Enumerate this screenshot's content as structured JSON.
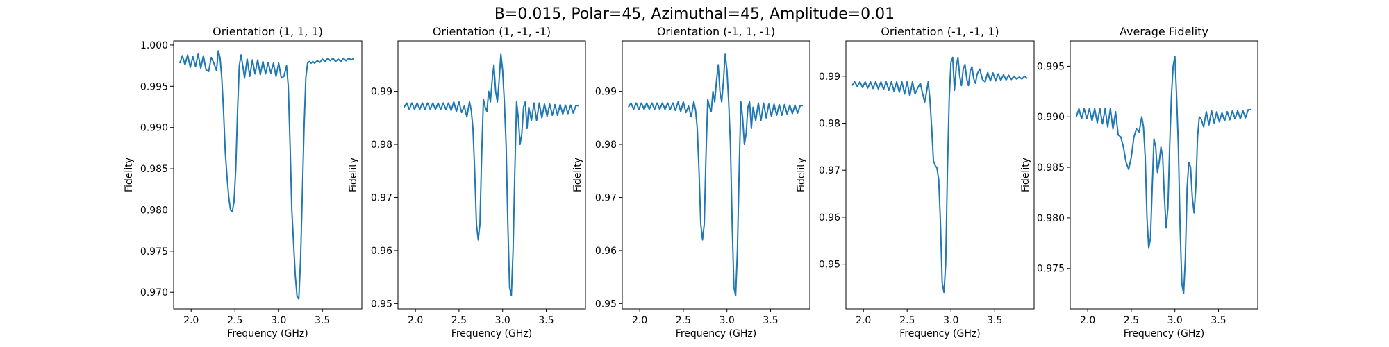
{
  "figure": {
    "suptitle": "B=0.015, Polar=45, Azimuthal=45, Amplitude=0.01",
    "line_color": "#1f77b4"
  },
  "chart_data": [
    {
      "type": "line",
      "title": "Orientation (1, 1, 1)",
      "xlabel": "Frequency (GHz)",
      "ylabel": "Fidelity",
      "xlim": [
        1.8,
        3.95
      ],
      "ylim": [
        0.968,
        1.0005
      ],
      "xticks": [
        2.0,
        2.5,
        3.0,
        3.5
      ],
      "xtick_labels": [
        "2.0",
        "2.5",
        "3.0",
        "3.5"
      ],
      "yticks": [
        0.97,
        0.975,
        0.98,
        0.985,
        0.99,
        0.995,
        1.0
      ],
      "ytick_labels": [
        "0.970",
        "0.975",
        "0.980",
        "0.985",
        "0.990",
        "0.995",
        "1.000"
      ],
      "grid": false,
      "series": [
        {
          "x": [
            1.87,
            1.9,
            1.93,
            1.96,
            1.99,
            2.02,
            2.05,
            2.08,
            2.11,
            2.14,
            2.17,
            2.2,
            2.23,
            2.26,
            2.29,
            2.31,
            2.33,
            2.35,
            2.37,
            2.39,
            2.41,
            2.43,
            2.45,
            2.47,
            2.49,
            2.51,
            2.53,
            2.55,
            2.57,
            2.59,
            2.61,
            2.64,
            2.67,
            2.7,
            2.73,
            2.76,
            2.79,
            2.82,
            2.85,
            2.88,
            2.91,
            2.94,
            2.97,
            3.0,
            3.03,
            3.06,
            3.09,
            3.11,
            3.13,
            3.15,
            3.17,
            3.19,
            3.21,
            3.23,
            3.25,
            3.27,
            3.29,
            3.31,
            3.33,
            3.35,
            3.37,
            3.39,
            3.41,
            3.44,
            3.47,
            3.5,
            3.53,
            3.56,
            3.59,
            3.62,
            3.65,
            3.68,
            3.71,
            3.74,
            3.77,
            3.8,
            3.83,
            3.86
          ],
          "y": [
            0.9978,
            0.9987,
            0.9976,
            0.9988,
            0.9973,
            0.9986,
            0.9974,
            0.9989,
            0.9972,
            0.9987,
            0.997,
            0.9968,
            0.9985,
            0.9978,
            0.9969,
            0.9993,
            0.9985,
            0.996,
            0.992,
            0.987,
            0.984,
            0.9815,
            0.98,
            0.9798,
            0.981,
            0.985,
            0.992,
            0.9975,
            0.9988,
            0.9975,
            0.996,
            0.9983,
            0.9962,
            0.9982,
            0.9965,
            0.9982,
            0.9964,
            0.998,
            0.9965,
            0.9979,
            0.9966,
            0.9978,
            0.9962,
            0.9978,
            0.996,
            0.9962,
            0.9975,
            0.995,
            0.988,
            0.98,
            0.976,
            0.972,
            0.9695,
            0.9692,
            0.974,
            0.982,
            0.99,
            0.996,
            0.9978,
            0.998,
            0.9978,
            0.998,
            0.9978,
            0.9981,
            0.9979,
            0.9983,
            0.998,
            0.9984,
            0.9981,
            0.9984,
            0.998,
            0.9983,
            0.998,
            0.9984,
            0.9981,
            0.9984,
            0.9982,
            0.9984
          ]
        }
      ]
    },
    {
      "type": "line",
      "title": "Orientation (1, -1, -1)",
      "xlabel": "Frequency (GHz)",
      "ylabel": "Fidelity",
      "xlim": [
        1.8,
        3.95
      ],
      "ylim": [
        0.949,
        0.9995
      ],
      "xticks": [
        2.0,
        2.5,
        3.0,
        3.5
      ],
      "xtick_labels": [
        "2.0",
        "2.5",
        "3.0",
        "3.5"
      ],
      "yticks": [
        0.95,
        0.96,
        0.97,
        0.98,
        0.99
      ],
      "ytick_labels": [
        "0.95",
        "0.96",
        "0.97",
        "0.98",
        "0.99"
      ],
      "grid": false,
      "series": [
        {
          "x": [
            1.87,
            1.9,
            1.93,
            1.96,
            1.99,
            2.02,
            2.05,
            2.08,
            2.11,
            2.14,
            2.17,
            2.2,
            2.23,
            2.26,
            2.29,
            2.32,
            2.35,
            2.38,
            2.41,
            2.44,
            2.47,
            2.5,
            2.53,
            2.56,
            2.59,
            2.62,
            2.64,
            2.66,
            2.68,
            2.7,
            2.72,
            2.74,
            2.76,
            2.78,
            2.8,
            2.82,
            2.84,
            2.86,
            2.88,
            2.9,
            2.92,
            2.94,
            2.96,
            2.98,
            3.0,
            3.02,
            3.04,
            3.06,
            3.08,
            3.1,
            3.12,
            3.14,
            3.16,
            3.18,
            3.2,
            3.22,
            3.24,
            3.26,
            3.28,
            3.3,
            3.33,
            3.36,
            3.39,
            3.42,
            3.45,
            3.48,
            3.51,
            3.54,
            3.57,
            3.6,
            3.63,
            3.66,
            3.69,
            3.72,
            3.75,
            3.78,
            3.81,
            3.84,
            3.87
          ],
          "y": [
            0.987,
            0.9878,
            0.9866,
            0.9878,
            0.9866,
            0.9878,
            0.9866,
            0.9878,
            0.9866,
            0.9878,
            0.9866,
            0.9878,
            0.9866,
            0.9878,
            0.9866,
            0.9878,
            0.9866,
            0.9878,
            0.9864,
            0.988,
            0.9862,
            0.988,
            0.986,
            0.9872,
            0.9852,
            0.988,
            0.9865,
            0.983,
            0.975,
            0.965,
            0.962,
            0.965,
            0.978,
            0.9885,
            0.987,
            0.9862,
            0.99,
            0.988,
            0.992,
            0.995,
            0.99,
            0.988,
            0.992,
            0.997,
            0.994,
            0.988,
            0.98,
            0.965,
            0.953,
            0.9515,
            0.96,
            0.975,
            0.988,
            0.985,
            0.98,
            0.982,
            0.987,
            0.988,
            0.983,
            0.987,
            0.9845,
            0.9878,
            0.9845,
            0.9878,
            0.985,
            0.9876,
            0.9853,
            0.9876,
            0.9855,
            0.9875,
            0.9855,
            0.9875,
            0.9857,
            0.9874,
            0.9858,
            0.9874,
            0.9859,
            0.9873,
            0.9873
          ]
        }
      ]
    },
    {
      "type": "line",
      "title": "Orientation (-1, 1, -1)",
      "xlabel": "Frequency (GHz)",
      "ylabel": "Fidelity",
      "xlim": [
        1.8,
        3.95
      ],
      "ylim": [
        0.949,
        0.9995
      ],
      "xticks": [
        2.0,
        2.5,
        3.0,
        3.5
      ],
      "xtick_labels": [
        "2.0",
        "2.5",
        "3.0",
        "3.5"
      ],
      "yticks": [
        0.95,
        0.96,
        0.97,
        0.98,
        0.99
      ],
      "ytick_labels": [
        "0.95",
        "0.96",
        "0.97",
        "0.98",
        "0.99"
      ],
      "grid": false,
      "series": [
        {
          "x": [
            1.87,
            1.9,
            1.93,
            1.96,
            1.99,
            2.02,
            2.05,
            2.08,
            2.11,
            2.14,
            2.17,
            2.2,
            2.23,
            2.26,
            2.29,
            2.32,
            2.35,
            2.38,
            2.41,
            2.44,
            2.47,
            2.5,
            2.53,
            2.56,
            2.59,
            2.62,
            2.64,
            2.66,
            2.68,
            2.7,
            2.72,
            2.74,
            2.76,
            2.78,
            2.8,
            2.82,
            2.84,
            2.86,
            2.88,
            2.9,
            2.92,
            2.94,
            2.96,
            2.98,
            3.0,
            3.02,
            3.04,
            3.06,
            3.08,
            3.1,
            3.12,
            3.14,
            3.16,
            3.18,
            3.2,
            3.22,
            3.24,
            3.26,
            3.28,
            3.3,
            3.33,
            3.36,
            3.39,
            3.42,
            3.45,
            3.48,
            3.51,
            3.54,
            3.57,
            3.6,
            3.63,
            3.66,
            3.69,
            3.72,
            3.75,
            3.78,
            3.81,
            3.84,
            3.87
          ],
          "y": [
            0.987,
            0.9878,
            0.9866,
            0.9878,
            0.9866,
            0.9878,
            0.9866,
            0.9878,
            0.9866,
            0.9878,
            0.9866,
            0.9878,
            0.9866,
            0.9878,
            0.9866,
            0.9878,
            0.9866,
            0.9878,
            0.9864,
            0.988,
            0.9862,
            0.988,
            0.986,
            0.9872,
            0.9852,
            0.988,
            0.9865,
            0.983,
            0.975,
            0.965,
            0.962,
            0.965,
            0.978,
            0.9885,
            0.987,
            0.9862,
            0.99,
            0.988,
            0.992,
            0.995,
            0.99,
            0.988,
            0.992,
            0.997,
            0.994,
            0.988,
            0.98,
            0.965,
            0.953,
            0.9515,
            0.96,
            0.975,
            0.988,
            0.985,
            0.98,
            0.982,
            0.987,
            0.988,
            0.983,
            0.987,
            0.9845,
            0.9878,
            0.9845,
            0.9878,
            0.985,
            0.9876,
            0.9853,
            0.9876,
            0.9855,
            0.9875,
            0.9855,
            0.9875,
            0.9857,
            0.9874,
            0.9858,
            0.9874,
            0.9859,
            0.9873,
            0.9873
          ]
        }
      ]
    },
    {
      "type": "line",
      "title": "Orientation (-1, -1, 1)",
      "xlabel": "Frequency (GHz)",
      "ylabel": "Fidelity",
      "xlim": [
        1.8,
        3.95
      ],
      "ylim": [
        0.9405,
        0.9975
      ],
      "xticks": [
        2.0,
        2.5,
        3.0,
        3.5
      ],
      "xtick_labels": [
        "2.0",
        "2.5",
        "3.0",
        "3.5"
      ],
      "yticks": [
        0.95,
        0.96,
        0.97,
        0.98,
        0.99
      ],
      "ytick_labels": [
        "0.95",
        "0.96",
        "0.97",
        "0.98",
        "0.99"
      ],
      "grid": false,
      "series": [
        {
          "x": [
            1.87,
            1.9,
            1.93,
            1.96,
            1.99,
            2.02,
            2.05,
            2.08,
            2.11,
            2.14,
            2.17,
            2.2,
            2.23,
            2.26,
            2.29,
            2.32,
            2.35,
            2.38,
            2.41,
            2.44,
            2.47,
            2.5,
            2.53,
            2.56,
            2.59,
            2.62,
            2.65,
            2.68,
            2.7,
            2.72,
            2.74,
            2.76,
            2.78,
            2.8,
            2.82,
            2.84,
            2.86,
            2.88,
            2.9,
            2.92,
            2.94,
            2.96,
            2.98,
            3.0,
            3.02,
            3.04,
            3.06,
            3.08,
            3.1,
            3.12,
            3.14,
            3.16,
            3.18,
            3.2,
            3.22,
            3.24,
            3.26,
            3.28,
            3.3,
            3.33,
            3.36,
            3.39,
            3.42,
            3.45,
            3.48,
            3.51,
            3.54,
            3.57,
            3.6,
            3.63,
            3.66,
            3.69,
            3.72,
            3.75,
            3.78,
            3.81,
            3.84,
            3.87
          ],
          "y": [
            0.988,
            0.9888,
            0.9878,
            0.9888,
            0.9876,
            0.9888,
            0.9875,
            0.9888,
            0.9874,
            0.9888,
            0.9873,
            0.9888,
            0.9872,
            0.9888,
            0.987,
            0.9888,
            0.9868,
            0.9888,
            0.9866,
            0.9888,
            0.9862,
            0.9888,
            0.9858,
            0.9888,
            0.9862,
            0.9875,
            0.9885,
            0.986,
            0.9845,
            0.9865,
            0.9888,
            0.985,
            0.979,
            0.972,
            0.971,
            0.9705,
            0.968,
            0.959,
            0.946,
            0.944,
            0.95,
            0.97,
            0.985,
            0.993,
            0.994,
            0.987,
            0.992,
            0.994,
            0.99,
            0.988,
            0.9915,
            0.9925,
            0.9895,
            0.988,
            0.991,
            0.992,
            0.9895,
            0.9885,
            0.9905,
            0.9915,
            0.9893,
            0.9888,
            0.9908,
            0.989,
            0.9907,
            0.989,
            0.9905,
            0.9891,
            0.9903,
            0.9892,
            0.9902,
            0.9893,
            0.99,
            0.9894,
            0.9898,
            0.9894,
            0.99,
            0.9895
          ]
        }
      ]
    },
    {
      "type": "line",
      "title": "Average Fidelity",
      "xlabel": "Frequency (GHz)",
      "ylabel": "Fidelity",
      "xlim": [
        1.8,
        3.95
      ],
      "ylim": [
        0.971,
        0.9975
      ],
      "xticks": [
        2.0,
        2.5,
        3.0,
        3.5
      ],
      "xtick_labels": [
        "2.0",
        "2.5",
        "3.0",
        "3.5"
      ],
      "yticks": [
        0.975,
        0.98,
        0.985,
        0.99,
        0.995
      ],
      "ytick_labels": [
        "0.975",
        "0.980",
        "0.985",
        "0.990",
        "0.995"
      ],
      "grid": false,
      "series": [
        {
          "x": [
            1.87,
            1.9,
            1.93,
            1.96,
            1.99,
            2.02,
            2.05,
            2.08,
            2.11,
            2.14,
            2.17,
            2.2,
            2.23,
            2.26,
            2.29,
            2.32,
            2.35,
            2.38,
            2.41,
            2.44,
            2.47,
            2.5,
            2.53,
            2.56,
            2.59,
            2.62,
            2.64,
            2.66,
            2.68,
            2.7,
            2.72,
            2.74,
            2.76,
            2.78,
            2.8,
            2.82,
            2.84,
            2.86,
            2.88,
            2.9,
            2.92,
            2.94,
            2.96,
            2.98,
            3.0,
            3.02,
            3.04,
            3.06,
            3.08,
            3.1,
            3.12,
            3.14,
            3.16,
            3.18,
            3.2,
            3.22,
            3.24,
            3.26,
            3.28,
            3.3,
            3.33,
            3.36,
            3.39,
            3.42,
            3.45,
            3.48,
            3.51,
            3.54,
            3.57,
            3.6,
            3.63,
            3.66,
            3.69,
            3.72,
            3.75,
            3.78,
            3.81,
            3.84,
            3.87
          ],
          "y": [
            0.99,
            0.9908,
            0.9898,
            0.9908,
            0.9898,
            0.9908,
            0.9896,
            0.9908,
            0.9894,
            0.9908,
            0.9893,
            0.9908,
            0.989,
            0.9908,
            0.9888,
            0.9905,
            0.9882,
            0.988,
            0.987,
            0.9855,
            0.9848,
            0.986,
            0.988,
            0.9888,
            0.9885,
            0.99,
            0.989,
            0.986,
            0.98,
            0.977,
            0.978,
            0.983,
            0.9878,
            0.987,
            0.9845,
            0.9855,
            0.987,
            0.986,
            0.982,
            0.979,
            0.981,
            0.987,
            0.992,
            0.995,
            0.996,
            0.992,
            0.987,
            0.979,
            0.9735,
            0.9725,
            0.976,
            0.983,
            0.9855,
            0.985,
            0.982,
            0.9805,
            0.983,
            0.988,
            0.99,
            0.9898,
            0.989,
            0.9905,
            0.9892,
            0.9906,
            0.9894,
            0.9905,
            0.9895,
            0.9904,
            0.9896,
            0.9905,
            0.9897,
            0.9906,
            0.9898,
            0.9906,
            0.9898,
            0.9906,
            0.9899,
            0.9907,
            0.9907
          ]
        }
      ]
    }
  ]
}
